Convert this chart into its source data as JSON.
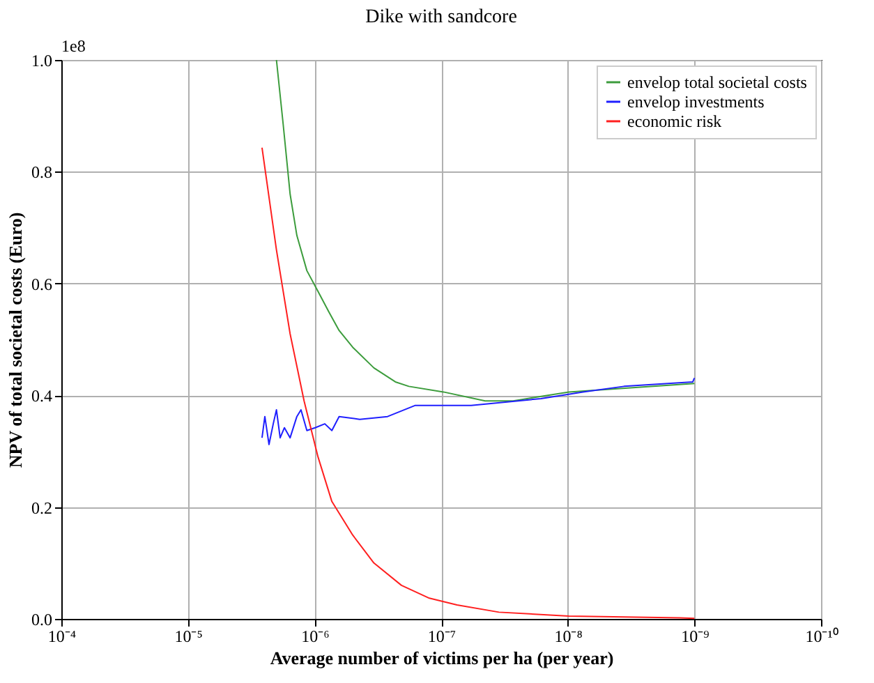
{
  "chart_data": {
    "type": "line",
    "title": "Dike with sandcore",
    "xlabel": "Average number of victims per ha (per year)",
    "ylabel": "NPV of total societal costs (Euro)",
    "annotations": [
      "1e8"
    ],
    "xlim": [
      0.0001,
      1e-10
    ],
    "xticks": [
      {
        "value": 0.0001,
        "label": "10⁻⁴"
      },
      {
        "value": 1e-05,
        "label": "10⁻⁵"
      },
      {
        "value": 1e-06,
        "label": "10⁻⁶"
      },
      {
        "value": 1e-07,
        "label": "10⁻⁷"
      },
      {
        "value": 1e-08,
        "label": "10⁻⁸"
      },
      {
        "value": 1e-09,
        "label": "10⁻⁹"
      },
      {
        "value": 1e-10,
        "label": "10⁻¹⁰"
      }
    ],
    "ylim": [
      0,
      1
    ],
    "yticks": [
      {
        "value": 0,
        "label": "0.0"
      },
      0.2,
      0.4,
      0.6,
      0.8,
      {
        "value": 1,
        "label": "1.0"
      }
    ],
    "log": "x",
    "grid": true,
    "legend": "top right",
    "series": [
      {
        "name": "envelop total societal costs",
        "color": "#3c9c3c",
        "x": [
          2e-06,
          1.77e-06,
          1.56e-06,
          1.38e-06,
          1.15e-06,
          9.4e-07,
          7.7e-07,
          6.4e-07,
          5e-07,
          3.4e-07,
          2.3e-07,
          1.8e-07,
          9.6e-08,
          4.5e-08,
          2.7e-08,
          9.8e-09,
          1e-09
        ],
        "values": [
          1.0,
          0.885,
          0.76,
          0.686,
          0.623,
          0.586,
          0.549,
          0.516,
          0.486,
          0.449,
          0.424,
          0.416,
          0.406,
          0.39,
          0.39,
          0.406,
          0.421
        ]
      },
      {
        "name": "envelop investments",
        "color": "#1f1fff",
        "x": [
          2.6e-06,
          2.47e-06,
          2.29e-06,
          2.12e-06,
          2e-06,
          1.87e-06,
          1.73e-06,
          1.56e-06,
          1.38e-06,
          1.28e-06,
          1.15e-06,
          9.9e-07,
          8.3e-07,
          7.3e-07,
          6.4e-07,
          4.4e-07,
          2.65e-07,
          1.6e-07,
          5.8e-08,
          1.63e-08,
          7.6e-09,
          3.6e-09,
          1.03e-09,
          1e-09
        ],
        "values": [
          0.324,
          0.362,
          0.312,
          0.349,
          0.374,
          0.324,
          0.342,
          0.324,
          0.362,
          0.374,
          0.337,
          0.342,
          0.349,
          0.337,
          0.362,
          0.357,
          0.362,
          0.382,
          0.382,
          0.394,
          0.406,
          0.416,
          0.424,
          0.431
        ]
      },
      {
        "name": "economic risk",
        "color": "#ff1f1f",
        "x": [
          2.6e-06,
          2e-06,
          1.56e-06,
          1.21e-06,
          9.4e-07,
          7.3e-07,
          5e-07,
          3.4e-07,
          2.06e-07,
          1.24e-07,
          7.5e-08,
          3.5e-08,
          9.8e-09,
          1.3e-09,
          1e-09
        ],
        "values": [
          0.843,
          0.66,
          0.51,
          0.39,
          0.29,
          0.21,
          0.15,
          0.1,
          0.06,
          0.037,
          0.025,
          0.012,
          0.005,
          0.002,
          0.001
        ]
      }
    ]
  }
}
